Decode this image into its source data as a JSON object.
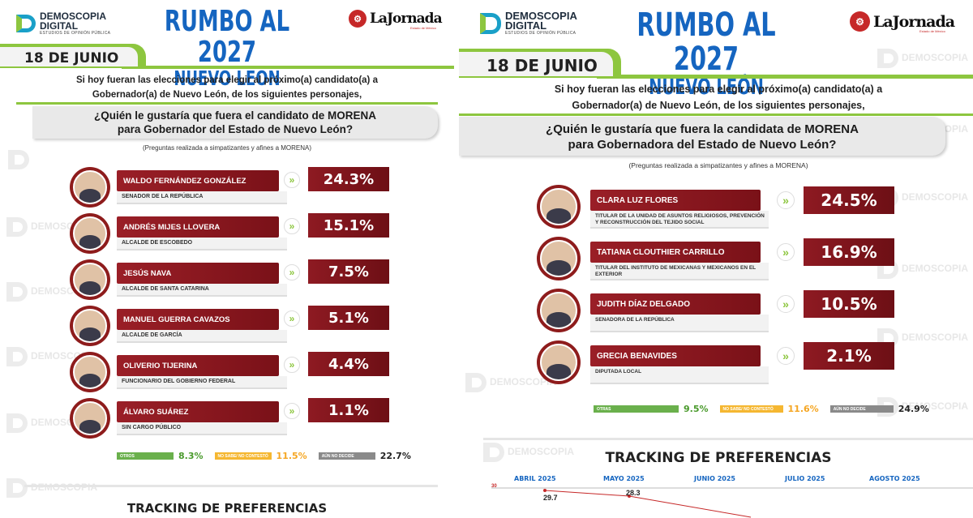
{
  "header": {
    "brand_line1": "DEMOSCOPIA",
    "brand_line2": "DIGITAL",
    "brand_tagline": "ESTUDIOS DE OPINIÓN PÚBLICA",
    "title": "RUMBO AL 2027",
    "subtitle": "NUEVO LEÓN",
    "partner": "LaJornada",
    "partner_sub": "Estado de México",
    "date": "18 DE JUNIO"
  },
  "watermark": {
    "line1": "DEMOSCOPIA",
    "line2": "DIGITAL"
  },
  "intro": {
    "line1": "Si hoy fueran las elecciones para elegir al próximo(a) candidato(a) a",
    "line2": "Gobernador(a) de Nuevo León, de los siguientes personajes,"
  },
  "left": {
    "question_line1": "¿Quién le gustaría que fuera el candidato de MORENA",
    "question_line2": "para Gobernador del Estado de Nuevo León?",
    "note": "(Preguntas realizada a simpatizantes y afines a MORENA)",
    "candidates": [
      {
        "name": "WALDO FERNÁNDEZ GONZÁLEZ",
        "role": "SENADOR DE LA REPÚBLICA",
        "pct": "24.3%"
      },
      {
        "name": "ANDRÉS MIJES LLOVERA",
        "role": "ALCALDE DE ESCOBEDO",
        "pct": "15.1%"
      },
      {
        "name": "JESÚS NAVA",
        "role": "ALCALDE DE SANTA CATARINA",
        "pct": "7.5%"
      },
      {
        "name": "MANUEL GUERRA CAVAZOS",
        "role": "ALCALDE DE GARCÍA",
        "pct": "5.1%"
      },
      {
        "name": "OLIVERIO TIJERINA",
        "role": "FUNCIONARIO DEL GOBIERNO FEDERAL",
        "pct": "4.4%"
      },
      {
        "name": "ÁLVARO SUÁREZ",
        "role": "SIN CARGO PÚBLICO",
        "pct": "1.1%"
      }
    ],
    "legend": [
      {
        "label": "OTROS",
        "value": "8.3%",
        "color": "#6ab04c"
      },
      {
        "label": "NO SABE/ NO CONTESTÓ",
        "value": "11.5%",
        "color": "#f5b731"
      },
      {
        "label": "AÚN NO DECIDE",
        "value": "22.7%",
        "color": "#8a8a8a"
      }
    ],
    "tracking_title": "TRACKING DE PREFERENCIAS"
  },
  "right": {
    "question_line1": "¿Quién le gustaría que fuera la candidata de MORENA",
    "question_line2": "para Gobernadora del Estado de Nuevo León?",
    "note": "(Preguntas realizada a simpatizantes y afines a MORENA)",
    "candidates": [
      {
        "name": "CLARA LUZ FLORES",
        "role": "TITULAR DE LA UNIDAD DE ASUNTOS RELIGIOSOS, PREVENCIÓN Y RECONSTRUCCIÓN DEL TEJIDO SOCIAL",
        "pct": "24.5%"
      },
      {
        "name": "TATIANA CLOUTHIER CARRILLO",
        "role": "TITULAR DEL INSTITUTO DE MEXICANAS Y MEXICANOS EN EL EXTERIOR",
        "pct": "16.9%"
      },
      {
        "name": "JUDITH DÍAZ DELGADO",
        "role": "SENADORA DE LA REPÚBLICA",
        "pct": "10.5%"
      },
      {
        "name": "GRECIA BENAVIDES",
        "role": "DIPUTADA LOCAL",
        "pct": "2.1%"
      }
    ],
    "legend": [
      {
        "label": "OTRAS",
        "value": "9.5%",
        "color": "#6ab04c"
      },
      {
        "label": "NO SABE/ NO CONTESTÓ",
        "value": "11.6%",
        "color": "#f5b731"
      },
      {
        "label": "AÚN NO DECIDE",
        "value": "24.9%",
        "color": "#8a8a8a"
      }
    ],
    "tracking_title": "TRACKING DE PREFERENCIAS",
    "tracking_months": [
      "ABRIL 2025",
      "MAYO 2025",
      "JUNIO 2025",
      "JULIO 2025",
      "AGOSTO 2025"
    ],
    "tracking_axis_label": "30",
    "tracking_values": [
      "29.7",
      "28.3"
    ]
  }
}
